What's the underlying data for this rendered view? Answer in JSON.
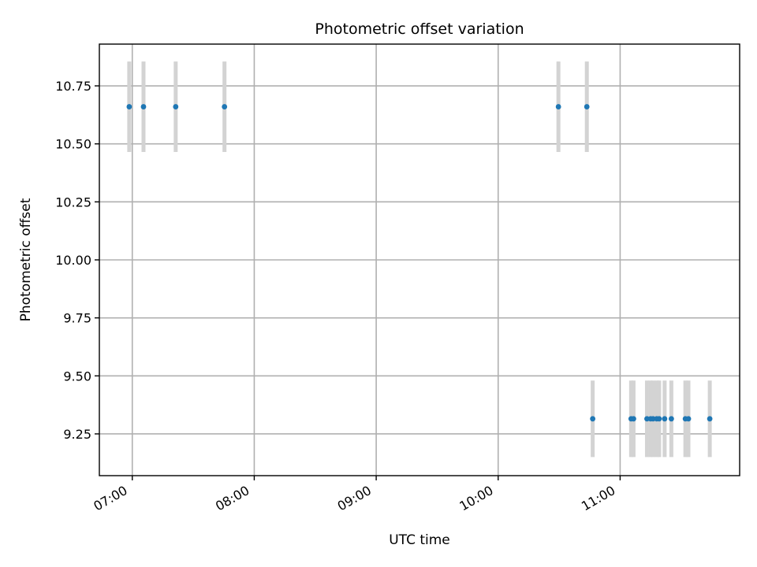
{
  "chart_data": {
    "type": "scatter",
    "title": "Photometric offset variation",
    "xlabel": "UTC time",
    "ylabel": "Photometric offset",
    "x_tick_labels": [
      "07:00",
      "08:00",
      "09:00",
      "10:00",
      "11:00"
    ],
    "x_ticks_hours": [
      7,
      8,
      9,
      10,
      11
    ],
    "y_ticks": [
      9.25,
      9.5,
      9.75,
      10.0,
      10.25,
      10.5,
      10.75
    ],
    "y_tick_labels": [
      "9.25",
      "9.50",
      "9.75",
      "10.00",
      "10.25",
      "10.50",
      "10.75"
    ],
    "xlim_hours": [
      6.73,
      11.98
    ],
    "ylim": [
      9.07,
      10.93
    ],
    "grid": true,
    "series": [
      {
        "marker_color": "#1f77b4",
        "errorbar_color": "#d3d3d3",
        "points": [
          {
            "x_hours": 6.975,
            "y": 10.66,
            "err": 0.195
          },
          {
            "x_hours": 7.092,
            "y": 10.66,
            "err": 0.195
          },
          {
            "x_hours": 7.356,
            "y": 10.66,
            "err": 0.195
          },
          {
            "x_hours": 7.756,
            "y": 10.66,
            "err": 0.195
          },
          {
            "x_hours": 10.494,
            "y": 10.66,
            "err": 0.195
          },
          {
            "x_hours": 10.727,
            "y": 10.66,
            "err": 0.195
          },
          {
            "x_hours": 10.775,
            "y": 9.315,
            "err": 0.165
          },
          {
            "x_hours": 11.09,
            "y": 9.315,
            "err": 0.165
          },
          {
            "x_hours": 11.11,
            "y": 9.315,
            "err": 0.165
          },
          {
            "x_hours": 11.22,
            "y": 9.315,
            "err": 0.165
          },
          {
            "x_hours": 11.25,
            "y": 9.315,
            "err": 0.165
          },
          {
            "x_hours": 11.27,
            "y": 9.315,
            "err": 0.165
          },
          {
            "x_hours": 11.3,
            "y": 9.315,
            "err": 0.165
          },
          {
            "x_hours": 11.32,
            "y": 9.315,
            "err": 0.165
          },
          {
            "x_hours": 11.365,
            "y": 9.315,
            "err": 0.165
          },
          {
            "x_hours": 11.42,
            "y": 9.315,
            "err": 0.165
          },
          {
            "x_hours": 11.535,
            "y": 9.315,
            "err": 0.165
          },
          {
            "x_hours": 11.56,
            "y": 9.315,
            "err": 0.165
          },
          {
            "x_hours": 11.735,
            "y": 9.315,
            "err": 0.165
          }
        ]
      }
    ]
  }
}
